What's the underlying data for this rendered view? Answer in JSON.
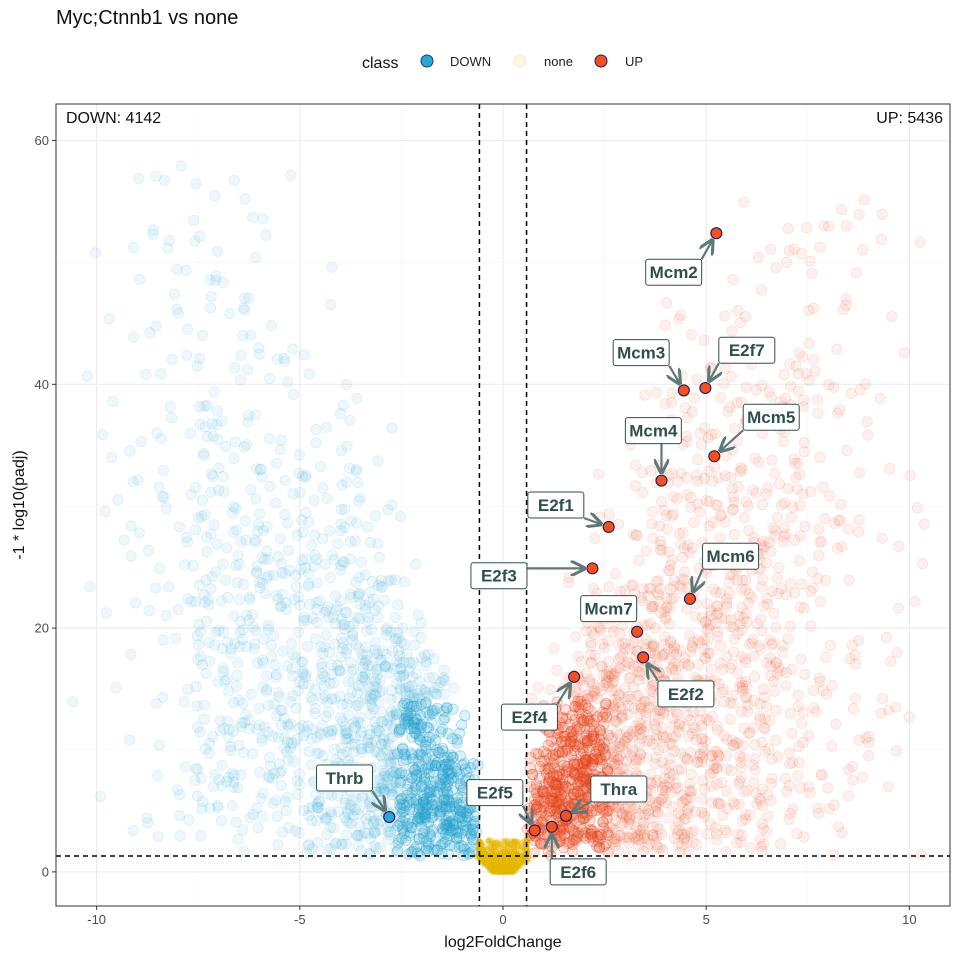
{
  "title": "Myc;Ctnnb1 vs none",
  "colors": {
    "down": "#1a9bc9",
    "down_fill": "#29a8d6",
    "none": "#e6b800",
    "up": "#d63a1e",
    "up_fill": "#f4511e",
    "label_text": "#2f4f4f",
    "arrow": "#5f7878"
  },
  "chart_data": {
    "type": "scatter",
    "title": "Myc;Ctnnb1 vs none",
    "xlabel": "log2FoldChange",
    "ylabel": "-1 * log10(padj)",
    "xlim": [
      -11,
      11
    ],
    "ylim": [
      -2.8,
      63
    ],
    "x_ticks": [
      -10,
      -5,
      0,
      5,
      10
    ],
    "y_ticks": [
      0,
      20,
      40,
      60
    ],
    "x_tick_labels": [
      "-10",
      "-5",
      "0",
      "5",
      "10"
    ],
    "y_tick_labels": [
      "0",
      "20",
      "40",
      "60"
    ],
    "grid": true,
    "fc_thresholds": [
      -0.58,
      0.58
    ],
    "padj_threshold": 1.3,
    "legend": {
      "title": "class",
      "position": "top",
      "entries": [
        {
          "key": "DOWN",
          "label": "DOWN"
        },
        {
          "key": "none",
          "label": "none"
        },
        {
          "key": "UP",
          "label": "UP"
        }
      ]
    },
    "counts": {
      "down_label": "DOWN: 4142",
      "up_label": "UP: 5436"
    },
    "highlighted_genes": [
      {
        "name": "Mcm2",
        "x": 5.25,
        "y": 52.4,
        "class": "UP",
        "lx": 4.2,
        "ly": 49.2
      },
      {
        "name": "Mcm3",
        "x": 4.45,
        "y": 39.5,
        "class": "UP",
        "lx": 3.4,
        "ly": 42.6
      },
      {
        "name": "E2f7",
        "x": 4.98,
        "y": 39.7,
        "class": "UP",
        "lx": 6.0,
        "ly": 42.8
      },
      {
        "name": "Mcm5",
        "x": 5.2,
        "y": 34.1,
        "class": "UP",
        "lx": 6.6,
        "ly": 37.3
      },
      {
        "name": "Mcm4",
        "x": 3.9,
        "y": 32.1,
        "class": "UP",
        "lx": 3.7,
        "ly": 36.2
      },
      {
        "name": "E2f1",
        "x": 2.6,
        "y": 28.3,
        "class": "UP",
        "lx": 1.3,
        "ly": 30.1
      },
      {
        "name": "E2f3",
        "x": 2.2,
        "y": 24.9,
        "class": "UP",
        "lx": -0.1,
        "ly": 24.3
      },
      {
        "name": "Mcm6",
        "x": 4.6,
        "y": 22.4,
        "class": "UP",
        "lx": 5.6,
        "ly": 25.9
      },
      {
        "name": "Mcm7",
        "x": 3.3,
        "y": 19.7,
        "class": "UP",
        "lx": 2.6,
        "ly": 21.6
      },
      {
        "name": "E2f2",
        "x": 3.45,
        "y": 17.6,
        "class": "UP",
        "lx": 4.5,
        "ly": 14.6
      },
      {
        "name": "E2f4",
        "x": 1.75,
        "y": 16.0,
        "class": "UP",
        "lx": 0.65,
        "ly": 12.7
      },
      {
        "name": "Thrb",
        "x": -2.8,
        "y": 4.5,
        "class": "DOWN",
        "lx": -3.9,
        "ly": 7.7
      },
      {
        "name": "E2f5",
        "x": 0.78,
        "y": 3.4,
        "class": "UP",
        "lx": -0.2,
        "ly": 6.5
      },
      {
        "name": "Thra",
        "x": 1.55,
        "y": 4.6,
        "class": "UP",
        "lx": 2.85,
        "ly": 6.8
      },
      {
        "name": "E2f6",
        "x": 1.2,
        "y": 3.7,
        "class": "UP",
        "lx": 1.85,
        "ly": 0.0
      }
    ]
  }
}
